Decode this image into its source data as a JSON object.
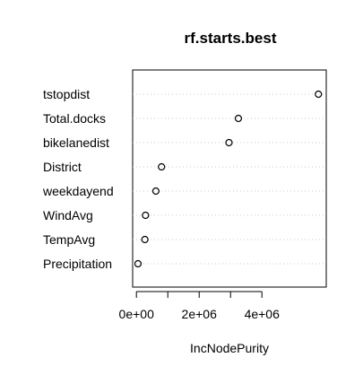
{
  "chart_data": {
    "type": "scatter",
    "title": "rf.starts.best",
    "xlabel": "IncNodePurity",
    "ylabel": "",
    "xlim": [
      -120000,
      6050000
    ],
    "x_ticks": [
      {
        "value": 0,
        "label": "0e+00"
      },
      {
        "value": 2000000,
        "label": "2e+06"
      },
      {
        "value": 4000000,
        "label": "4e+06"
      }
    ],
    "categories": [
      "tstopdist",
      "Total.docks",
      "bikelanedist",
      "District",
      "weekdayend",
      "WindAvg",
      "TempAvg",
      "Precipitation"
    ],
    "values": [
      5800000,
      3250000,
      2950000,
      800000,
      620000,
      290000,
      270000,
      50000
    ],
    "grid": "dotted horizontal guide lines",
    "marker": "open circle"
  }
}
